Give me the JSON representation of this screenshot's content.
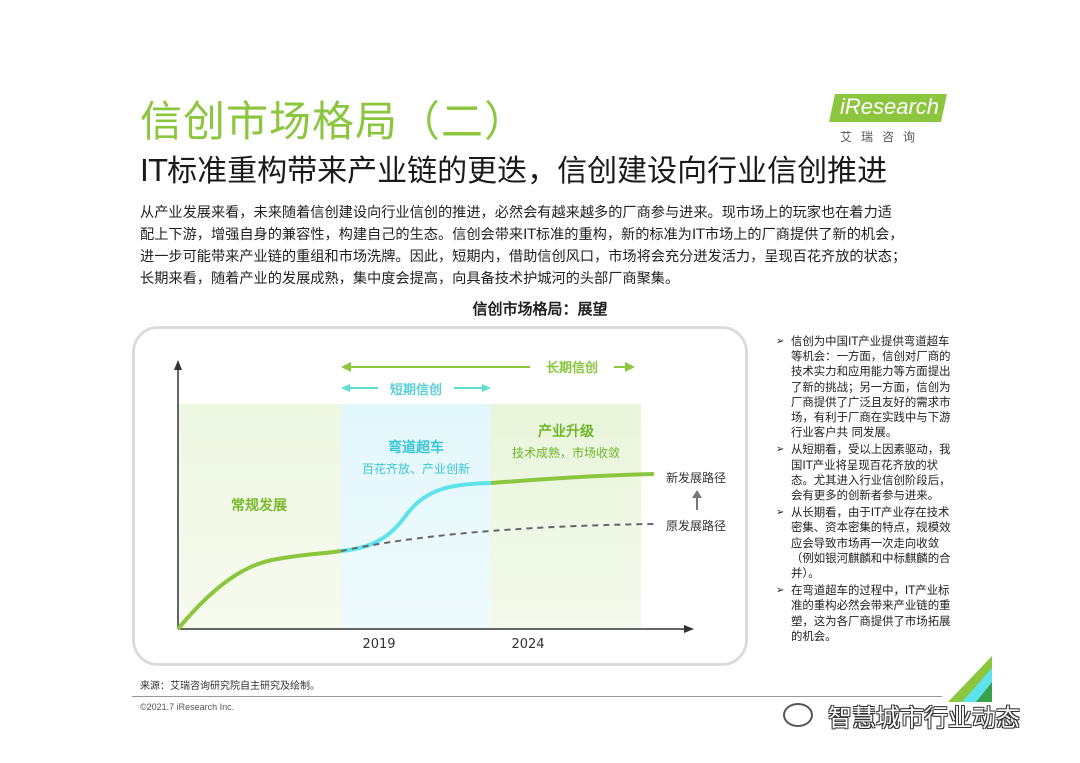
{
  "header": {
    "title": "信创市场格局（二）",
    "subtitle": "IT标准重构带来产业链的更迭，信创建设向行业信创推进"
  },
  "logo": {
    "brand": "iResearch",
    "sub": "艾瑞咨询"
  },
  "intro_lines": [
    "从产业发展来看，未来随着信创建设向行业信创的推进，必然会有越来越多的厂商参与进来。现市场上的玩家也在着力适",
    "配上下游，增强自身的兼容性，构建自己的生态。信创会带来IT标准的重构，新的标准为IT市场上的厂商提供了新的机会，",
    "进一步可能带来产业链的重组和市场洗牌。因此，短期内，借助信创风口，市场将会充分迸发活力，呈现百花齐放的状态；",
    "长期来看，随着产业的发展成熟，集中度会提高，向具备技术护城河的头部厂商聚集。"
  ],
  "chart_title": "信创市场格局：展望",
  "chart_data": {
    "type": "diagram",
    "long_term_label": "长期信创",
    "short_term_label": "短期信创",
    "phases": [
      {
        "name": "常规发展",
        "desc": ""
      },
      {
        "name": "弯道超车",
        "desc": "百花齐放、产业创新"
      },
      {
        "name": "产业升级",
        "desc": "技术成熟，市场收敛"
      }
    ],
    "x_ticks": [
      "2019",
      "2024"
    ],
    "paths": [
      {
        "name": "新发展路径"
      },
      {
        "name": "原发展路径"
      }
    ],
    "colors": {
      "green": "#8cc63f",
      "cyan": "#5ee3ec",
      "arrow": "#5ee0d0"
    }
  },
  "notes": [
    "信创为中国IT产业提供弯道超车等机会：一方面，信创对厂商的技术实力和应用能力等方面提出了新的挑战；另一方面，信创为厂商提供了广泛且友好的需求市场，有利于厂商在实践中与下游行业客户共 同发展。",
    "从短期看，受以上因素驱动，我国IT产业将呈现百花齐放的状态。尤其进入行业信创阶段后，会有更多的创新者参与进来。",
    "从长期看，由于IT产业存在技术密集、资本密集的特点，规模效应会导致市场再一次走向收敛（例如银河麒麟和中标麒麟的合并）。",
    "在弯道超车的过程中，IT产业标准的重构必然会带来产业链的重塑，这为各厂商提供了市场拓展的机会。"
  ],
  "source": "来源：艾瑞咨询研究院自主研究及绘制。",
  "copyright": "©2021.7 iResearch Inc.",
  "watermark": "智慧城市行业动态"
}
